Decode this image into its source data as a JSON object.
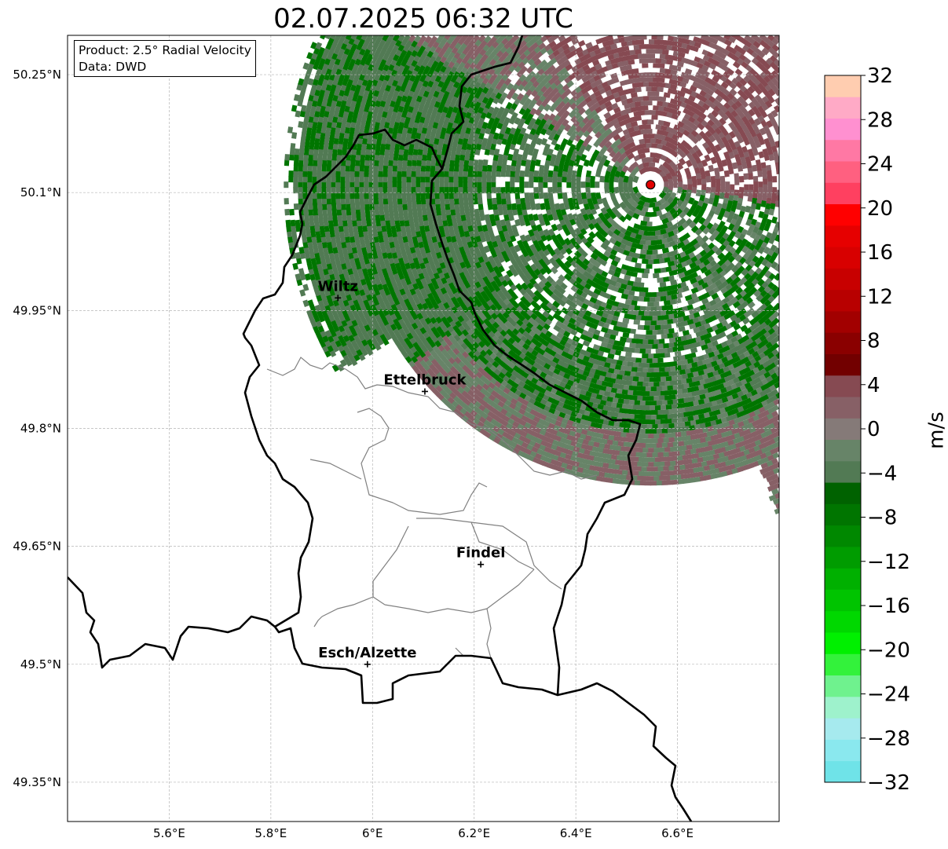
{
  "title": "02.07.2025 06:32 UTC",
  "info": {
    "product": "Product: 2.5° Radial Velocity",
    "data_source": "Data: DWD"
  },
  "axes": {
    "lon_range": [
      5.4,
      6.8
    ],
    "lat_range": [
      49.3,
      50.3
    ],
    "lon_ticks": [
      "5.6°E",
      "5.8°E",
      "6°E",
      "6.2°E",
      "6.4°E",
      "6.6°E"
    ],
    "lat_ticks": [
      "50.25°N",
      "50.1°N",
      "49.95°N",
      "49.8°N",
      "49.65°N",
      "49.5°N",
      "49.35°N"
    ]
  },
  "radar_site": {
    "lon": 6.547,
    "lat": 50.11,
    "color": "#e00000"
  },
  "cities": [
    {
      "name": "Wiltz",
      "lon": 5.932,
      "lat": 49.966
    },
    {
      "name": "Ettelbruck",
      "lon": 6.103,
      "lat": 49.847
    },
    {
      "name": "Findel",
      "lon": 6.213,
      "lat": 49.627
    },
    {
      "name": "Esch/Alzette",
      "lon": 5.99,
      "lat": 49.5
    }
  ],
  "colorbar": {
    "label": "m/s",
    "min": -32,
    "max": 32,
    "ticks": [
      "32",
      "28",
      "24",
      "20",
      "16",
      "12",
      "8",
      "4",
      "0",
      "−4",
      "−8",
      "−12",
      "−16",
      "−20",
      "−24",
      "−28",
      "−32"
    ],
    "colors": [
      "#6fe3e8",
      "#8ae8ee",
      "#a6eaee",
      "#9ef2cc",
      "#6ff28e",
      "#33f23b",
      "#00f000",
      "#00d800",
      "#00c400",
      "#00b000",
      "#009c00",
      "#008800",
      "#007500",
      "#006200",
      "#527a54",
      "#678468",
      "#857a78",
      "#876066",
      "#864a52",
      "#720000",
      "#8a0000",
      "#a20000",
      "#b80000",
      "#c80000",
      "#d80000",
      "#e60000",
      "#ff0000",
      "#ff4060",
      "#ff6080",
      "#ff78a4",
      "#ff90d0",
      "#ffaac6",
      "#ffcdb0"
    ]
  }
}
